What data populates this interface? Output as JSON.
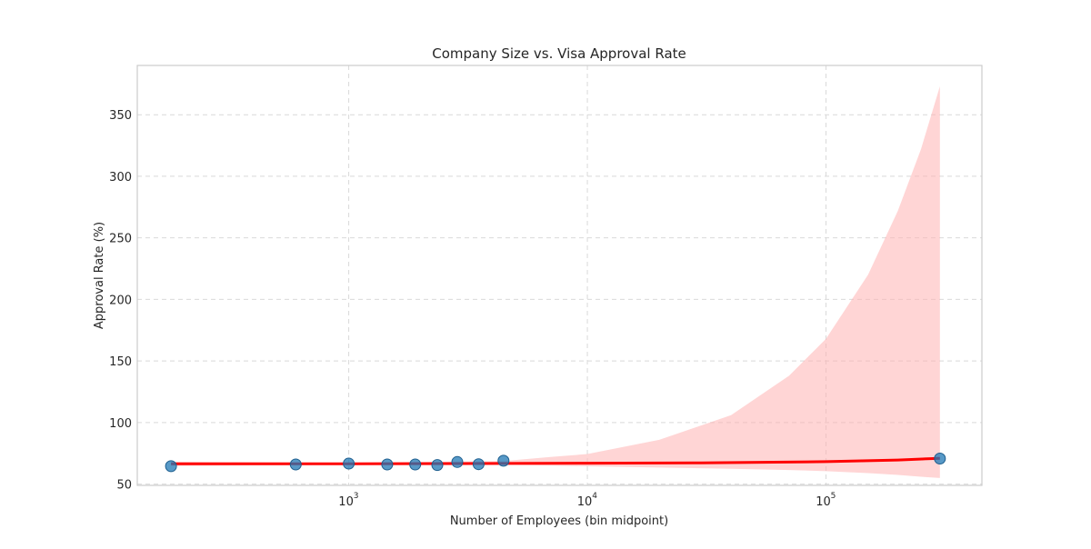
{
  "chart_data": {
    "type": "scatter",
    "title": "Company Size vs. Visa Approval Rate",
    "xlabel": "Number of Employees (bin midpoint)",
    "ylabel": "Approval Rate (%)",
    "xscale": "log",
    "xlim": [
      130,
      450000
    ],
    "ylim": [
      49,
      390
    ],
    "x_ticks": [
      {
        "base": "10",
        "exp": "3",
        "value": 1000
      },
      {
        "base": "10",
        "exp": "4",
        "value": 10000
      },
      {
        "base": "10",
        "exp": "5",
        "value": 100000
      }
    ],
    "y_ticks": [
      50,
      100,
      150,
      200,
      250,
      300,
      350
    ],
    "grid": true,
    "grid_style": "dashed",
    "scatter": {
      "color": "#1f77b4",
      "points": [
        {
          "x": 180,
          "y": 64.6
        },
        {
          "x": 600,
          "y": 66.0
        },
        {
          "x": 1000,
          "y": 66.7
        },
        {
          "x": 1450,
          "y": 66.0
        },
        {
          "x": 1900,
          "y": 66.0
        },
        {
          "x": 2350,
          "y": 65.5
        },
        {
          "x": 2850,
          "y": 68.0
        },
        {
          "x": 3500,
          "y": 66.2
        },
        {
          "x": 4450,
          "y": 69.0
        },
        {
          "x": 300000,
          "y": 70.8
        }
      ]
    },
    "fit_line": {
      "color": "#ff0000",
      "points": [
        {
          "x": 180,
          "y": 66.5
        },
        {
          "x": 1000,
          "y": 66.6
        },
        {
          "x": 4450,
          "y": 66.8
        },
        {
          "x": 10000,
          "y": 67.0
        },
        {
          "x": 30000,
          "y": 67.3
        },
        {
          "x": 100000,
          "y": 68.3
        },
        {
          "x": 200000,
          "y": 69.6
        },
        {
          "x": 300000,
          "y": 71.0
        }
      ]
    },
    "confidence_band": {
      "color": "#ffb3b3",
      "points": [
        {
          "x": 180,
          "lower": 64.8,
          "upper": 68.1
        },
        {
          "x": 1000,
          "lower": 65.8,
          "upper": 67.4
        },
        {
          "x": 4450,
          "lower": 65.8,
          "upper": 68.8
        },
        {
          "x": 7000,
          "lower": 65.0,
          "upper": 72.0
        },
        {
          "x": 10000,
          "lower": 64.5,
          "upper": 74.5
        },
        {
          "x": 20000,
          "lower": 63.5,
          "upper": 86.0
        },
        {
          "x": 40000,
          "lower": 62.5,
          "upper": 106.0
        },
        {
          "x": 70000,
          "lower": 61.5,
          "upper": 138.0
        },
        {
          "x": 100000,
          "lower": 60.5,
          "upper": 168.0
        },
        {
          "x": 150000,
          "lower": 59.0,
          "upper": 220.0
        },
        {
          "x": 200000,
          "lower": 57.5,
          "upper": 272.0
        },
        {
          "x": 250000,
          "lower": 56.0,
          "upper": 322.0
        },
        {
          "x": 300000,
          "lower": 55.0,
          "upper": 373.0
        }
      ]
    }
  }
}
